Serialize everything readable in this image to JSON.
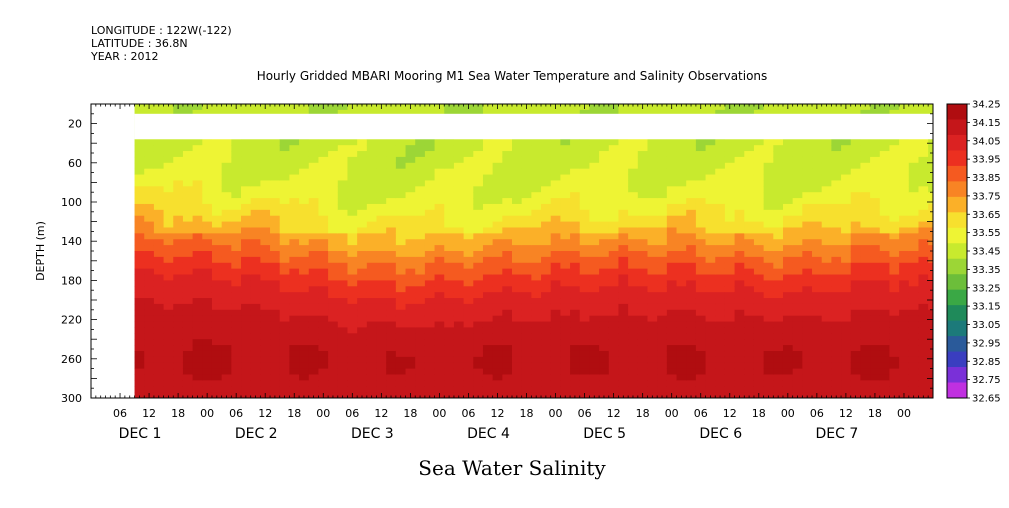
{
  "header": {
    "longitude": "LONGITUDE : 122W(-122)",
    "latitude": "LATITUDE : 36.8N",
    "year": "YEAR : 2012"
  },
  "chart_data": {
    "type": "heatmap",
    "title": "Hourly Gridded MBARI Mooring M1 Sea Water Temperature and Salinity Observations",
    "variable_title": "Sea Water Salinity",
    "ylabel": "DEPTH (m)",
    "x_time_range": [
      "2012-12-01T00:00",
      "2012-12-08T06:00"
    ],
    "data_start": "2012-12-01T09:00",
    "ylim": [
      300,
      0
    ],
    "y_ticks": [
      20,
      60,
      100,
      140,
      180,
      220,
      260,
      300
    ],
    "x_hour_ticks": [
      "06",
      "12",
      "18",
      "00",
      "06",
      "12",
      "18",
      "00",
      "06",
      "12",
      "18",
      "00",
      "06",
      "12",
      "18",
      "00",
      "06",
      "12",
      "18",
      "00",
      "06",
      "12",
      "18",
      "00",
      "06",
      "12",
      "18",
      "00"
    ],
    "day_labels": [
      "DEC 1",
      "DEC 2",
      "DEC 3",
      "DEC 4",
      "DEC 5",
      "DEC 6",
      "DEC 7"
    ],
    "colorbar_levels": [
      "34.25",
      "34.15",
      "34.05",
      "33.95",
      "33.85",
      "33.75",
      "33.65",
      "33.55",
      "33.45",
      "33.35",
      "33.25",
      "33.15",
      "33.05",
      "32.95",
      "32.85",
      "32.75",
      "32.65"
    ],
    "colorbar_colors": [
      "#b00d10",
      "#c5161a",
      "#db2222",
      "#ec3020",
      "#f55a20",
      "#f88424",
      "#fbb028",
      "#f7e02e",
      "#eef434",
      "#c8ea2e",
      "#9cd636",
      "#6cbe3a",
      "#3aa845",
      "#1f8a5a",
      "#1c7a7a",
      "#2a5a9a",
      "#3a3ec0",
      "#7a30d8",
      "#c030e0"
    ],
    "missing_depth_band_m": [
      10,
      36
    ],
    "value_range": [
      32.65,
      34.25
    ]
  }
}
